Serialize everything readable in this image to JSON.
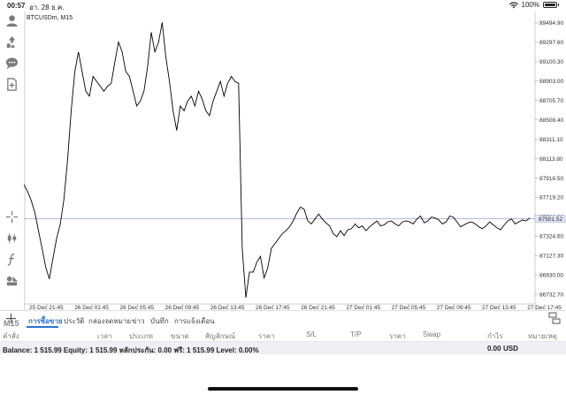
{
  "status": {
    "time": "00:57",
    "date": "อา. 28 ธ.ค.",
    "battery": "100%"
  },
  "chart_data": {
    "type": "line",
    "title": "BTCUSDm, M15",
    "ylim": [
      86635,
      89593
    ],
    "y_ticks": [
      "89494.90",
      "89297.60",
      "89100.30",
      "88903.00",
      "88705.70",
      "88508.40",
      "88311.10",
      "88113.80",
      "87916.50",
      "87719.20",
      "87521.90",
      "87324.60",
      "87127.30",
      "86930.00",
      "86732.70"
    ],
    "x_ticks": [
      "25 Dec 21:45",
      "26 Dec 01:45",
      "26 Dec 05:45",
      "26 Dec 09:45",
      "26 Dec 13:45",
      "26 Dec 17:45",
      "26 Dec 21:45",
      "27 Dec 01:45",
      "27 Dec 05:45",
      "27 Dec 09:45",
      "27 Dec 13:45",
      "27 Dec 17:45"
    ],
    "current_price": "87501.52",
    "series": [
      {
        "values": [
          87850,
          87780,
          87690,
          87570,
          87380,
          87200,
          87010,
          86890,
          87100,
          87300,
          87450,
          87700,
          88100,
          88600,
          89000,
          89200,
          89000,
          88800,
          88750,
          88950,
          88900,
          88850,
          88800,
          88850,
          88880,
          89100,
          89300,
          89200,
          89000,
          88950,
          88800,
          88650,
          88700,
          88800,
          89050,
          89400,
          89200,
          89300,
          89500,
          89150,
          88900,
          88600,
          88400,
          88650,
          88600,
          88700,
          88750,
          88650,
          88800,
          88720,
          88600,
          88550,
          88700,
          88800,
          88900,
          88750,
          88880,
          88950,
          88900,
          88880,
          87200,
          86700,
          86960,
          86960,
          87060,
          87120,
          86900,
          87000,
          87200,
          87250,
          87300,
          87350,
          87380,
          87420,
          87480,
          87560,
          87620,
          87600,
          87480,
          87450,
          87500,
          87550,
          87500,
          87460,
          87430,
          87350,
          87320,
          87380,
          87330,
          87390,
          87400,
          87450,
          87410,
          87430,
          87380,
          87420,
          87450,
          87480,
          87430,
          87440,
          87470,
          87480,
          87450,
          87430,
          87470,
          87480,
          87470,
          87450,
          87500,
          87530,
          87460,
          87480,
          87520,
          87510,
          87490,
          87450,
          87470,
          87530,
          87520,
          87470,
          87420,
          87440,
          87460,
          87470,
          87450,
          87420,
          87400,
          87430,
          87470,
          87440,
          87410,
          87390,
          87440,
          87480,
          87500,
          87450,
          87470,
          87490,
          87480,
          87510
        ]
      }
    ]
  },
  "tabs": [
    "การซื้อขาย",
    "ประวัติ",
    "กล่องจดหมาย",
    "ข่าว",
    "บันทึก",
    "การแจ้งเตือน"
  ],
  "timeframe": "M15",
  "columns": [
    "คำสั่ง",
    "เวลา",
    "ประเภท",
    "ขนาด",
    "สัญลักษณ์",
    "ราคา",
    "S/L",
    "T/P",
    "ราคา",
    "Swap",
    "กำไร",
    "หมายเหตุ"
  ],
  "balance": {
    "text": "Balance: 1 515.99 Equity: 1 515.99 หลักประกัน: 0.00 ฟรี: 1 515.99 Level: 0.00%",
    "amount": "0.00",
    "currency": "USD"
  },
  "colors": {
    "accent": "#2a74d0",
    "price_line": "#9aa3d6",
    "line": "#000000"
  },
  "icons": [
    "user-icon",
    "trade-icon",
    "chat-icon",
    "add-indicator-icon",
    "crosshair-icon",
    "candles-icon",
    "function-icon",
    "objects-icon",
    "plus-icon",
    "panel-icon"
  ]
}
